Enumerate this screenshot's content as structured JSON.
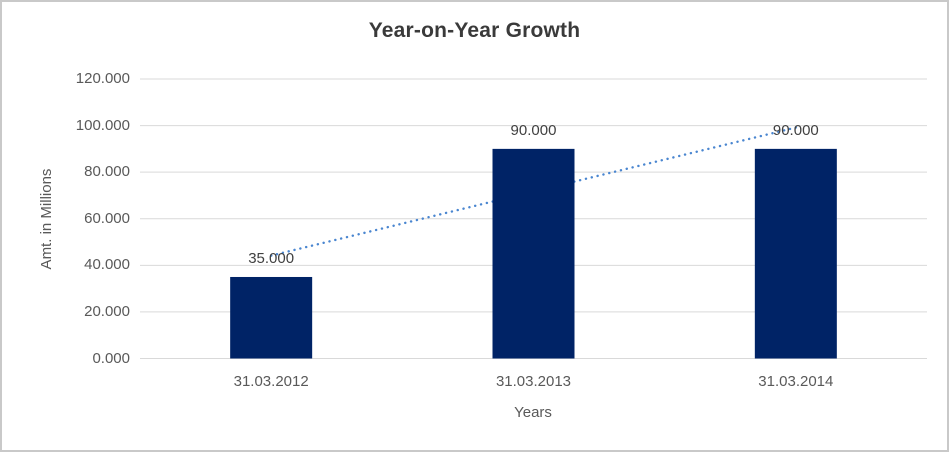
{
  "window": {
    "background_color": "#ffffff",
    "border_color": "#c9c9c9"
  },
  "chart_data": {
    "type": "bar",
    "title": "Year-on-Year Growth",
    "xlabel": "Years",
    "ylabel": "Amt. in Millions",
    "categories": [
      "31.03.2012",
      "31.03.2013",
      "31.03.2014"
    ],
    "values": [
      35,
      90,
      90
    ],
    "data_labels": [
      "35.000",
      "90.000",
      "90.000"
    ],
    "ylim": [
      0,
      120
    ],
    "y_tick_values": [
      0,
      20,
      40,
      60,
      80,
      100,
      120
    ],
    "y_tick_labels": [
      "0.000",
      "20.000",
      "40.000",
      "60.000",
      "80.000",
      "100.000",
      "120.000"
    ],
    "grid": true,
    "legend": "none",
    "trendline": {
      "style": "dotted",
      "values": [
        44.17,
        71.67,
        99.17
      ]
    },
    "colors": {
      "bar": "#002366",
      "trendline": "#4a86d0",
      "gridline": "#d9d9d9",
      "axis_text": "#595959",
      "label_text": "#404040",
      "title_text": "#3a3a3a"
    }
  }
}
